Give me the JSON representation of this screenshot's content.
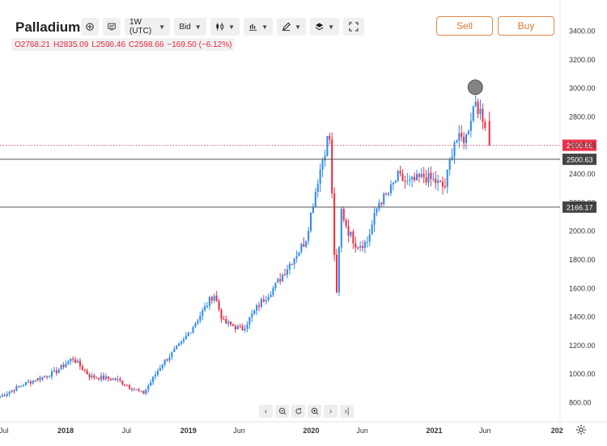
{
  "instrument": {
    "title": "Palladium"
  },
  "toolbar": {
    "timeframe_label": "1W (UTC)",
    "price_type_label": "Bid",
    "icons": [
      "add-circle-icon",
      "indicator-icon",
      "candle-type-icon",
      "bar-style-icon",
      "drawing-pen-icon",
      "layers-icon",
      "fullscreen-icon"
    ]
  },
  "ohlc": {
    "open": "O2768.21",
    "high": "H2835.09",
    "low": "L2596.46",
    "close": "C2598.66",
    "change": "−169.50 (−6.12%)"
  },
  "trade": {
    "sell_label": "Sell",
    "buy_label": "Buy",
    "accent_color": "#e0884a"
  },
  "navigation_icons": [
    "chevron-left-icon",
    "zoom-out-icon",
    "reset-icon",
    "zoom-in-icon",
    "chevron-right-icon",
    "jump-to-end-icon"
  ],
  "chart_data": {
    "type": "candlestick",
    "title": "Palladium",
    "x_range": [
      "2017-06-20",
      "2022-01-10"
    ],
    "x_ticks": [
      {
        "date": "2017-07-01",
        "label": "Jul"
      },
      {
        "date": "2018-01-01",
        "label": "2018"
      },
      {
        "date": "2018-07-01",
        "label": "Jul"
      },
      {
        "date": "2019-01-01",
        "label": "2019"
      },
      {
        "date": "2019-06-01",
        "label": "Jun"
      },
      {
        "date": "2020-01-01",
        "label": "2020"
      },
      {
        "date": "2020-06-01",
        "label": "Jun"
      },
      {
        "date": "2021-01-01",
        "label": "2021"
      },
      {
        "date": "2021-06-01",
        "label": "Jun"
      },
      {
        "date": "2022-01-01",
        "label": "202"
      }
    ],
    "y_range": [
      700,
      3500
    ],
    "y_ticks": [
      800,
      1000,
      1200,
      1400,
      1600,
      1800,
      2000,
      2200,
      2400,
      2600,
      2800,
      3000,
      3200,
      3400
    ],
    "y_tick_labels": [
      "800.00",
      "1000.00",
      "1200.00",
      "1400.00",
      "1600.00",
      "1800.00",
      "2000.00",
      "2200.00",
      "2400.00",
      "2600.00",
      "2800.00",
      "3000.00",
      "3200.00",
      "3400.00"
    ],
    "up_color": "#2f8cf0",
    "down_color": "#e8334a",
    "current_price": {
      "value": 2598.66,
      "label": "2598.66"
    },
    "horizontal_lines": [
      {
        "value": 2500.63,
        "label": "2500.63"
      },
      {
        "value": 2166.17,
        "label": "2166.17"
      }
    ],
    "marker": {
      "date": "2021-05-03",
      "value": 3005
    },
    "anchors": [
      {
        "date": "2017-06-20",
        "value": 840
      },
      {
        "date": "2017-09-01",
        "value": 930
      },
      {
        "date": "2017-12-01",
        "value": 1010
      },
      {
        "date": "2018-01-22",
        "value": 1110
      },
      {
        "date": "2018-03-15",
        "value": 980
      },
      {
        "date": "2018-06-01",
        "value": 960
      },
      {
        "date": "2018-08-20",
        "value": 860
      },
      {
        "date": "2018-10-15",
        "value": 1070
      },
      {
        "date": "2018-12-15",
        "value": 1220
      },
      {
        "date": "2019-03-18",
        "value": 1560
      },
      {
        "date": "2019-04-15",
        "value": 1360
      },
      {
        "date": "2019-06-10",
        "value": 1310
      },
      {
        "date": "2019-08-01",
        "value": 1490
      },
      {
        "date": "2019-09-15",
        "value": 1610
      },
      {
        "date": "2019-10-15",
        "value": 1720
      },
      {
        "date": "2019-12-15",
        "value": 1930
      },
      {
        "date": "2020-01-20",
        "value": 2350
      },
      {
        "date": "2020-02-24",
        "value": 2700
      },
      {
        "date": "2020-03-16",
        "value": 1500
      },
      {
        "date": "2020-03-30",
        "value": 2150
      },
      {
        "date": "2020-04-20",
        "value": 2000
      },
      {
        "date": "2020-05-15",
        "value": 1900
      },
      {
        "date": "2020-06-15",
        "value": 1920
      },
      {
        "date": "2020-07-20",
        "value": 2200
      },
      {
        "date": "2020-08-15",
        "value": 2250
      },
      {
        "date": "2020-09-15",
        "value": 2380
      },
      {
        "date": "2020-10-15",
        "value": 2330
      },
      {
        "date": "2020-12-01",
        "value": 2380
      },
      {
        "date": "2021-01-01",
        "value": 2350
      },
      {
        "date": "2021-02-01",
        "value": 2300
      },
      {
        "date": "2021-03-01",
        "value": 2630
      },
      {
        "date": "2021-04-05",
        "value": 2650
      },
      {
        "date": "2021-05-03",
        "value": 2930
      },
      {
        "date": "2021-05-24",
        "value": 2760
      },
      {
        "date": "2021-06-07",
        "value": 2768
      }
    ],
    "last_candle": {
      "date": "2021-06-14",
      "open": 2768.21,
      "high": 2835.09,
      "low": 2596.46,
      "close": 2598.66
    }
  }
}
